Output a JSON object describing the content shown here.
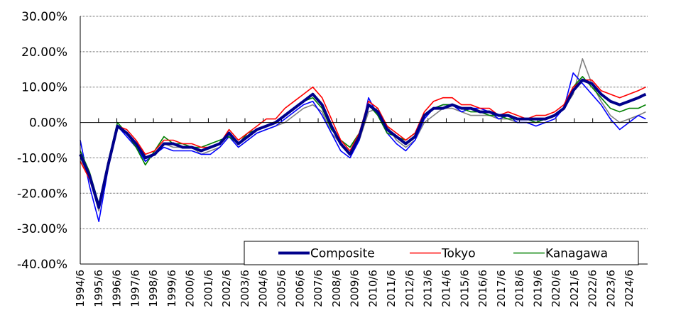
{
  "chart_data": {
    "type": "line",
    "title": "",
    "xlabel": "",
    "ylabel": "",
    "ylim": [
      -40,
      30
    ],
    "y_ticks": [
      "30.00%",
      "20.00%",
      "10.00%",
      "0.00%",
      "-10.00%",
      "-20.00%",
      "-30.00%",
      "-40.00%"
    ],
    "x_ticks": [
      "1994/6",
      "1995/6",
      "1996/6",
      "1997/6",
      "1998/6",
      "1999/6",
      "2000/6",
      "2001/6",
      "2002/6",
      "2003/6",
      "2004/6",
      "2005/6",
      "2006/6",
      "2007/6",
      "2008/6",
      "2009/6",
      "2010/6",
      "2011/6",
      "2012/6",
      "2013/6",
      "2014/6",
      "2015/6",
      "2016/6",
      "2017/6",
      "2018/6",
      "2019/6",
      "2020/6",
      "2021/6",
      "2022/6",
      "2023/6",
      "2024/6"
    ],
    "grid": "horizontal",
    "legend_position": "bottom-right",
    "x": [
      1994.5,
      1995.0,
      1995.5,
      1996.0,
      1996.5,
      1997.0,
      1997.5,
      1998.0,
      1998.5,
      1999.0,
      1999.5,
      2000.0,
      2000.5,
      2001.0,
      2001.5,
      2002.0,
      2002.5,
      2003.0,
      2003.5,
      2004.0,
      2004.5,
      2005.0,
      2005.5,
      2006.0,
      2006.5,
      2007.0,
      2007.5,
      2008.0,
      2008.5,
      2009.0,
      2009.5,
      2010.0,
      2010.5,
      2011.0,
      2011.5,
      2012.0,
      2012.5,
      2013.0,
      2013.5,
      2014.0,
      2014.5,
      2015.0,
      2015.5,
      2016.0,
      2016.5,
      2017.0,
      2017.5,
      2018.0,
      2018.5,
      2019.0,
      2019.5,
      2020.0,
      2020.5,
      2021.0,
      2021.5,
      2022.0,
      2022.5,
      2023.0,
      2023.5,
      2024.0,
      2024.5,
      2024.9
    ],
    "series": [
      {
        "name": "Composite",
        "color": "#00008B",
        "width": 4,
        "values": [
          -9,
          -15,
          -24,
          -12,
          -1,
          -3,
          -6,
          -10,
          -9,
          -6,
          -6,
          -7,
          -7,
          -8,
          -7,
          -6,
          -3,
          -6,
          -4,
          -2,
          -1,
          0,
          2,
          4,
          6,
          8,
          5,
          -1,
          -6,
          -9,
          -4,
          5,
          3,
          -2,
          -4,
          -6,
          -4,
          2,
          4,
          4,
          5,
          4,
          4,
          3,
          3,
          2,
          2,
          1,
          1,
          1,
          1,
          2,
          4,
          9,
          12,
          11,
          8,
          6,
          5,
          6,
          7,
          8
        ]
      },
      {
        "name": "Tokyo",
        "color": "#FF0000",
        "width": 1.6,
        "values": [
          -11,
          -16,
          -24,
          -11,
          -1,
          -2,
          -5,
          -9,
          -8,
          -5,
          -5,
          -6,
          -6,
          -7,
          -7,
          -6,
          -2,
          -5,
          -3,
          -1,
          1,
          1,
          4,
          6,
          8,
          10,
          7,
          1,
          -5,
          -8,
          -3,
          6,
          4,
          -1,
          -3,
          -5,
          -3,
          3,
          6,
          7,
          7,
          5,
          5,
          4,
          4,
          2,
          3,
          2,
          1,
          2,
          2,
          3,
          5,
          10,
          12,
          12,
          9,
          8,
          7,
          8,
          9,
          10
        ]
      },
      {
        "name": "Kanagawa",
        "color": "#008000",
        "width": 1.6,
        "values": [
          -8,
          -14,
          -23,
          -11,
          0,
          -3,
          -7,
          -12,
          -8,
          -4,
          -6,
          -6,
          -7,
          -7,
          -6,
          -5,
          -4,
          -6,
          -3,
          -2,
          -1,
          0,
          2,
          4,
          6,
          7,
          4,
          -2,
          -5,
          -7,
          -3,
          5,
          2,
          -3,
          -4,
          -5,
          -3,
          2,
          4,
          5,
          5,
          4,
          3,
          3,
          2,
          2,
          1,
          1,
          1,
          0,
          1,
          2,
          4,
          10,
          13,
          10,
          7,
          4,
          3,
          4,
          4,
          5
        ]
      },
      {
        "name": "",
        "color": "#0000FF",
        "width": 1.6,
        "values": [
          -5,
          -18,
          -28,
          -13,
          -1,
          -4,
          -7,
          -11,
          -9,
          -7,
          -8,
          -8,
          -8,
          -9,
          -9,
          -7,
          -4,
          -7,
          -5,
          -3,
          -2,
          -1,
          1,
          3,
          5,
          6,
          2,
          -3,
          -8,
          -10,
          -5,
          7,
          2,
          -3,
          -6,
          -8,
          -5,
          1,
          4,
          5,
          5,
          3,
          4,
          4,
          3,
          1,
          2,
          0,
          0,
          -1,
          0,
          1,
          4,
          14,
          11,
          8,
          5,
          1,
          -2,
          0,
          2,
          1
        ]
      },
      {
        "name": "",
        "color": "#808080",
        "width": 1.6,
        "values": [
          -10,
          -16,
          -25,
          -12,
          -1,
          -3,
          -6,
          -11,
          -9,
          -6,
          -7,
          -7,
          -7,
          -9,
          -8,
          -7,
          -4,
          -7,
          -5,
          -3,
          -2,
          -1,
          0,
          2,
          4,
          5,
          3,
          -3,
          -6,
          -8,
          -5,
          3,
          4,
          -1,
          -5,
          -7,
          -5,
          0,
          2,
          4,
          4,
          3,
          2,
          2,
          2,
          1,
          1,
          0,
          0,
          0,
          1,
          2,
          4,
          8,
          18,
          11,
          6,
          2,
          0,
          1,
          2,
          3
        ]
      }
    ]
  }
}
